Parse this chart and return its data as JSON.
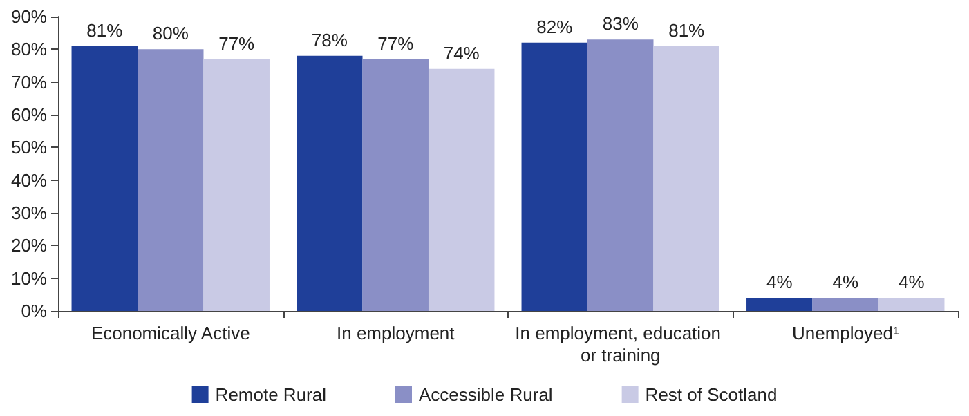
{
  "chart_data": {
    "type": "bar",
    "categories": [
      "Economically Active",
      "In employment",
      "In employment, education or training",
      "Unemployed¹"
    ],
    "series": [
      {
        "name": "Remote Rural",
        "color": "#1f3f99",
        "values": [
          81,
          78,
          82,
          4
        ],
        "value_labels": [
          "81%",
          "78%",
          "82%",
          "4%"
        ]
      },
      {
        "name": "Accessible Rural",
        "color": "#8a8fc6",
        "values": [
          80,
          77,
          83,
          4
        ],
        "value_labels": [
          "80%",
          "77%",
          "83%",
          "4%"
        ]
      },
      {
        "name": "Rest of Scotland",
        "color": "#c9cae5",
        "values": [
          77,
          74,
          81,
          4
        ],
        "value_labels": [
          "77%",
          "74%",
          "81%",
          "4%"
        ]
      }
    ],
    "ylim": [
      0,
      90
    ],
    "yticks": [
      {
        "value": 0,
        "label": "0%"
      },
      {
        "value": 10,
        "label": "10%"
      },
      {
        "value": 20,
        "label": "20%"
      },
      {
        "value": 30,
        "label": "30%"
      },
      {
        "value": 40,
        "label": "40%"
      },
      {
        "value": 50,
        "label": "50%"
      },
      {
        "value": 60,
        "label": "60%"
      },
      {
        "value": 70,
        "label": "70%"
      },
      {
        "value": 80,
        "label": "80%"
      },
      {
        "value": 90,
        "label": "90%"
      }
    ],
    "grid": false,
    "legend": "bottom"
  }
}
